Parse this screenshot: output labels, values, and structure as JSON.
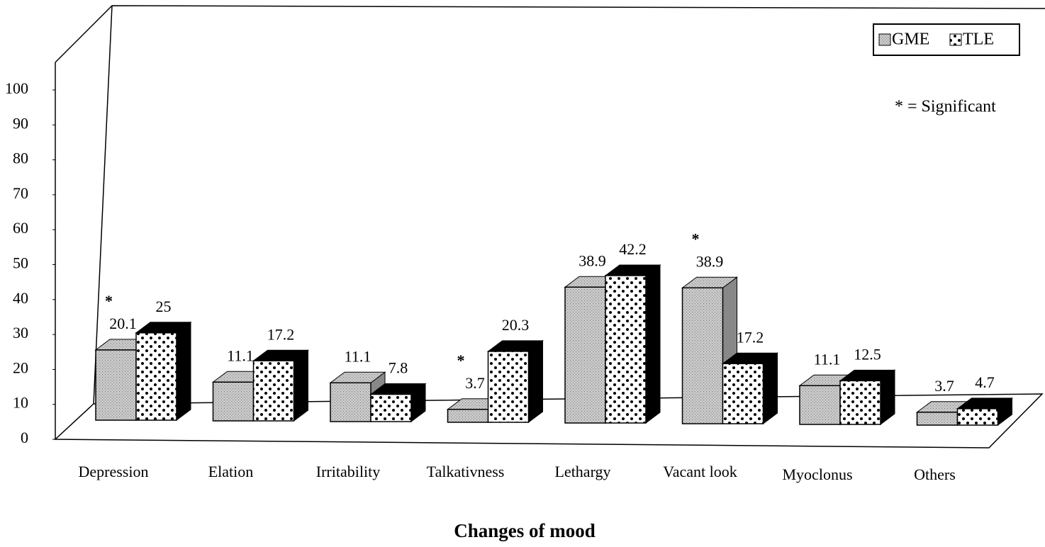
{
  "chart_data": {
    "type": "bar3d",
    "x_label": "Changes of mood",
    "categories": [
      "Depression",
      "Elation",
      "Irritability",
      "Talkativness",
      "Lethargy",
      "Vacant look",
      "Myoclonus",
      "Others"
    ],
    "series": [
      {
        "name": "GME",
        "color": "#bdbdbd",
        "values": [
          20.1,
          11.1,
          11.1,
          3.7,
          38.9,
          38.9,
          11.1,
          3.7
        ]
      },
      {
        "name": "TLE",
        "color": "#ffffff",
        "values": [
          25,
          17.2,
          7.8,
          20.3,
          42.2,
          17.2,
          12.5,
          4.7
        ]
      }
    ],
    "significant": [
      true,
      false,
      false,
      true,
      false,
      true,
      false,
      false
    ],
    "significance_marker": "*",
    "significance_note": "* = Significant",
    "ylim": [
      0,
      100
    ],
    "yticks": [
      0,
      10,
      20,
      30,
      40,
      50,
      60,
      70,
      80,
      90,
      100
    ],
    "legend": "top-right"
  }
}
